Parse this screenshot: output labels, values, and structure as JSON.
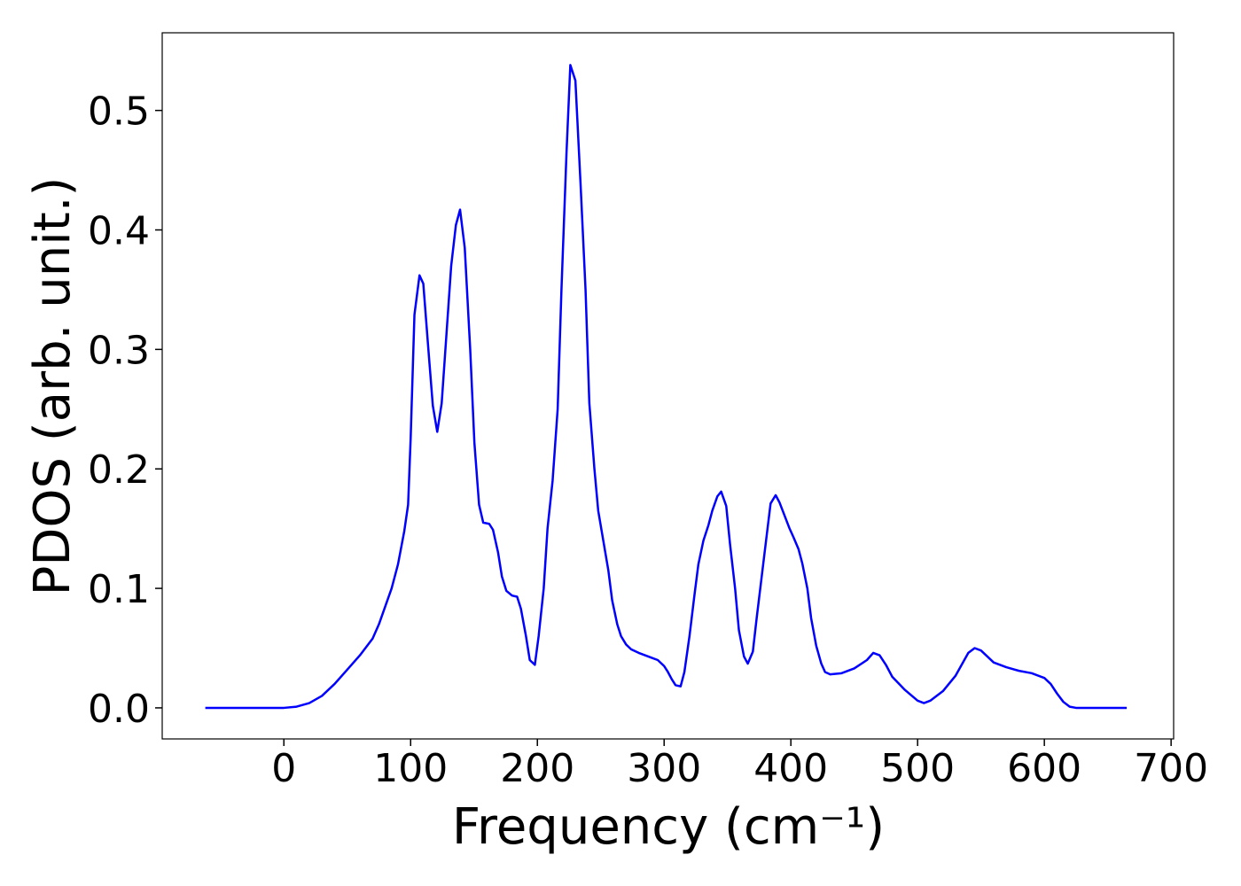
{
  "chart_data": {
    "type": "line",
    "xlabel": "Frequency (cm⁻¹)",
    "ylabel": "PDOS (arb. unit.)",
    "series": [
      {
        "color": "#0000ff",
        "x": [
          -62,
          -40,
          -20,
          0,
          10,
          20,
          30,
          40,
          50,
          60,
          70,
          75,
          80,
          85,
          90,
          95,
          98,
          100,
          103,
          107,
          110,
          114,
          117.5,
          121,
          124.5,
          132,
          135.7,
          139,
          142.7,
          147,
          150.3,
          154,
          157.3,
          162,
          165,
          169,
          172,
          175.5,
          180,
          184,
          187,
          191,
          194,
          198,
          201,
          205,
          208,
          212,
          216,
          219,
          223,
          226,
          230,
          234,
          238,
          241,
          245,
          248,
          252,
          256,
          259,
          263,
          266,
          270,
          274,
          280,
          290,
          295,
          300,
          303,
          306,
          309,
          313,
          316,
          320,
          324,
          327,
          331,
          335,
          338,
          342,
          345,
          349,
          352,
          356,
          359,
          363,
          366,
          370,
          373,
          377,
          381,
          384,
          388,
          391,
          395,
          399,
          402,
          406,
          409,
          413,
          416,
          420,
          424,
          427,
          431,
          440,
          450,
          460,
          465,
          470,
          475,
          480,
          490,
          500,
          505,
          510,
          520,
          530,
          540,
          545,
          550,
          555,
          560,
          570,
          580,
          590,
          600,
          605,
          610,
          615,
          620,
          625,
          665
        ],
        "values": [
          0,
          0,
          0,
          0,
          0.001,
          0.004,
          0.01,
          0.02,
          0.032,
          0.044,
          0.058,
          0.07,
          0.085,
          0.1,
          0.12,
          0.148,
          0.17,
          0.225,
          0.329,
          0.362,
          0.355,
          0.3,
          0.253,
          0.231,
          0.255,
          0.37,
          0.404,
          0.417,
          0.385,
          0.3,
          0.222,
          0.17,
          0.155,
          0.154,
          0.149,
          0.13,
          0.11,
          0.098,
          0.094,
          0.093,
          0.083,
          0.06,
          0.04,
          0.036,
          0.06,
          0.1,
          0.15,
          0.19,
          0.25,
          0.35,
          0.465,
          0.538,
          0.525,
          0.44,
          0.35,
          0.255,
          0.2,
          0.165,
          0.14,
          0.115,
          0.09,
          0.07,
          0.06,
          0.053,
          0.049,
          0.046,
          0.042,
          0.04,
          0.035,
          0.03,
          0.024,
          0.019,
          0.018,
          0.03,
          0.06,
          0.095,
          0.12,
          0.14,
          0.153,
          0.165,
          0.177,
          0.181,
          0.169,
          0.137,
          0.1,
          0.065,
          0.043,
          0.037,
          0.047,
          0.075,
          0.11,
          0.145,
          0.171,
          0.178,
          0.172,
          0.161,
          0.15,
          0.143,
          0.133,
          0.121,
          0.1,
          0.075,
          0.052,
          0.037,
          0.03,
          0.028,
          0.029,
          0.033,
          0.04,
          0.046,
          0.044,
          0.036,
          0.026,
          0.015,
          0.006,
          0.004,
          0.006,
          0.014,
          0.027,
          0.046,
          0.05,
          0.048,
          0.043,
          0.038,
          0.034,
          0.031,
          0.029,
          0.025,
          0.02,
          0.012,
          0.005,
          0.001,
          0,
          0
        ]
      }
    ],
    "xlim": [
      -96,
      702
    ],
    "xticks": [
      0,
      100,
      200,
      300,
      400,
      500,
      600,
      700
    ],
    "ylim": [
      -0.026,
      0.565
    ],
    "yticks": [
      {
        "value": 0,
        "label": "0.0"
      },
      0.1,
      0.2,
      0.3,
      0.4,
      0.5
    ],
    "grid": false
  }
}
